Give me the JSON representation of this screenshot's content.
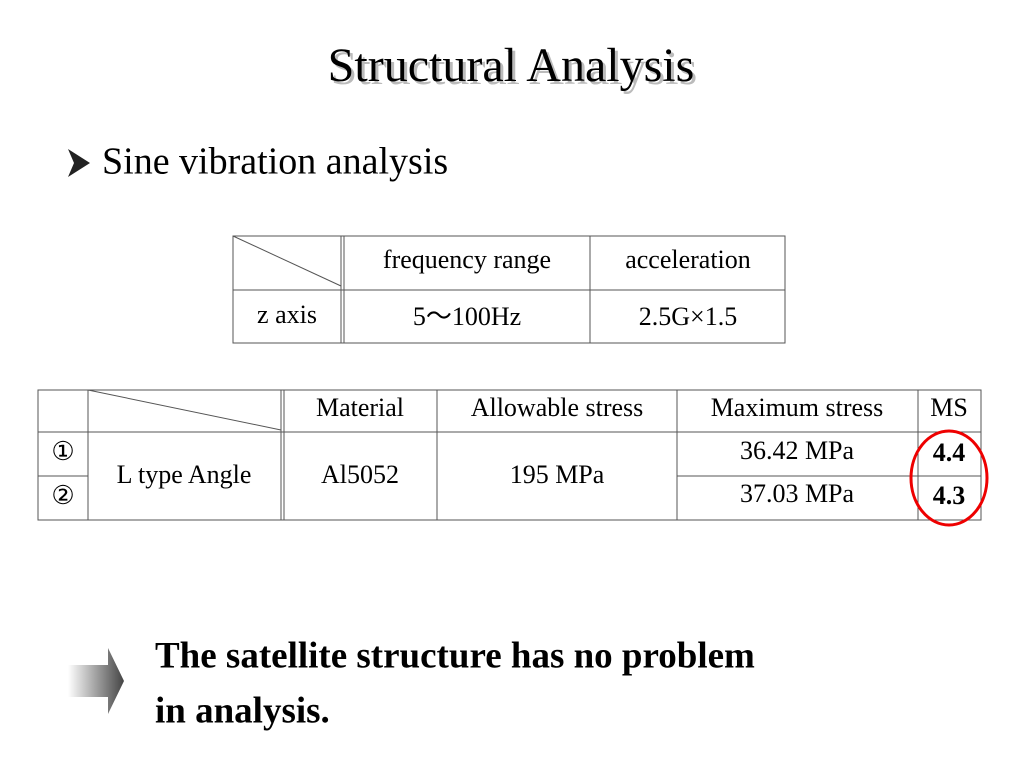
{
  "title": "Structural Analysis",
  "bullet": "Sine vibration analysis",
  "table1": {
    "header": [
      "frequency range",
      "acceleration"
    ],
    "rows": [
      [
        "z axis",
        "5～100Hz",
        "2.5G×1.5"
      ]
    ]
  },
  "table2": {
    "header": [
      "Material",
      "Allowable stress",
      "Maximum stress",
      "MS"
    ],
    "rows": [
      [
        "①",
        "L type Angle",
        "Al5052",
        "195 MPa",
        "36.42 MPa",
        "4.4"
      ],
      [
        "②",
        "37.03 MPa",
        "4.3"
      ]
    ]
  },
  "conclusion": [
    "The satellite structure has no problem",
    "in analysis."
  ]
}
